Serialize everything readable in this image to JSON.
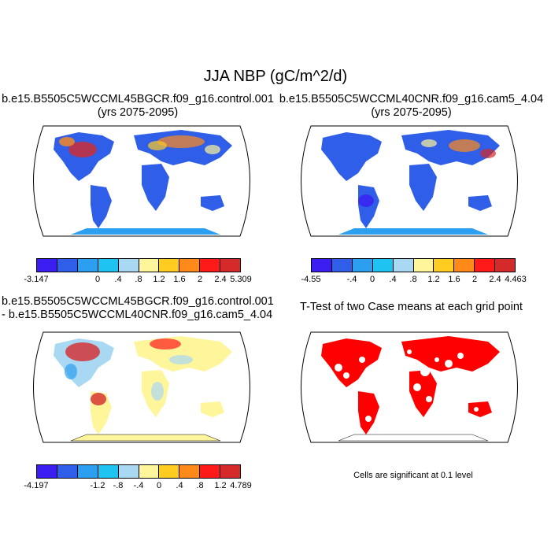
{
  "main_title": "JJA NBP (gC/m^2/d)",
  "panels": {
    "top_left": {
      "title_line1": "b.e15.B5505C5WCCML45BGCR.f09_g16.control.001",
      "title_line2": "(yrs 2075-2095)",
      "colorbar_labels": [
        "-3.147",
        "0",
        ".4",
        ".8",
        "1.2",
        "1.6",
        "2",
        "2.4",
        "5.309"
      ],
      "colors": [
        "#3a1ef2",
        "#2f5ee8",
        "#2d9ff0",
        "#1fc3f2",
        "#a9d8f2",
        "#fff59a",
        "#ffcc22",
        "#ff8a1a",
        "#ff1a1a",
        "#d42a2a"
      ]
    },
    "top_right": {
      "title_line1": "b.e15.B5505C5WCCML40CNR.f09_g16.cam5_4.04",
      "title_line2": "(yrs 2075-2095)",
      "colorbar_labels": [
        "-4.55",
        "-.4",
        "0",
        ".4",
        ".8",
        "1.2",
        "1.6",
        "2",
        "2.4",
        "4.463"
      ],
      "colors": [
        "#3a1ef2",
        "#2f5ee8",
        "#2d9ff0",
        "#1fc3f2",
        "#a9d8f2",
        "#fff59a",
        "#ffcc22",
        "#ff8a1a",
        "#ff1a1a",
        "#d42a2a"
      ]
    },
    "bottom_left": {
      "title_line1": "b.e15.B5505C5WCCML45BGCR.f09_g16.control.001",
      "title_line2": "- b.e15.B5505C5WCCML40CNR.f09_g16.cam5_4.04",
      "colorbar_labels": [
        "-4.197",
        "-1.2",
        "-.8",
        "-.4",
        "0",
        ".4",
        ".8",
        "1.2",
        "4.789"
      ],
      "colors": [
        "#3a1ef2",
        "#2f5ee8",
        "#2d9ff0",
        "#1fc3f2",
        "#a9d8f2",
        "#fff59a",
        "#ffcc22",
        "#ff8a1a",
        "#ff1a1a",
        "#d42a2a"
      ]
    },
    "bottom_right": {
      "title": "T-Test of two Case means at each grid point",
      "note": "Cells are significant at 0.1 level",
      "color": "#ff0000"
    }
  }
}
